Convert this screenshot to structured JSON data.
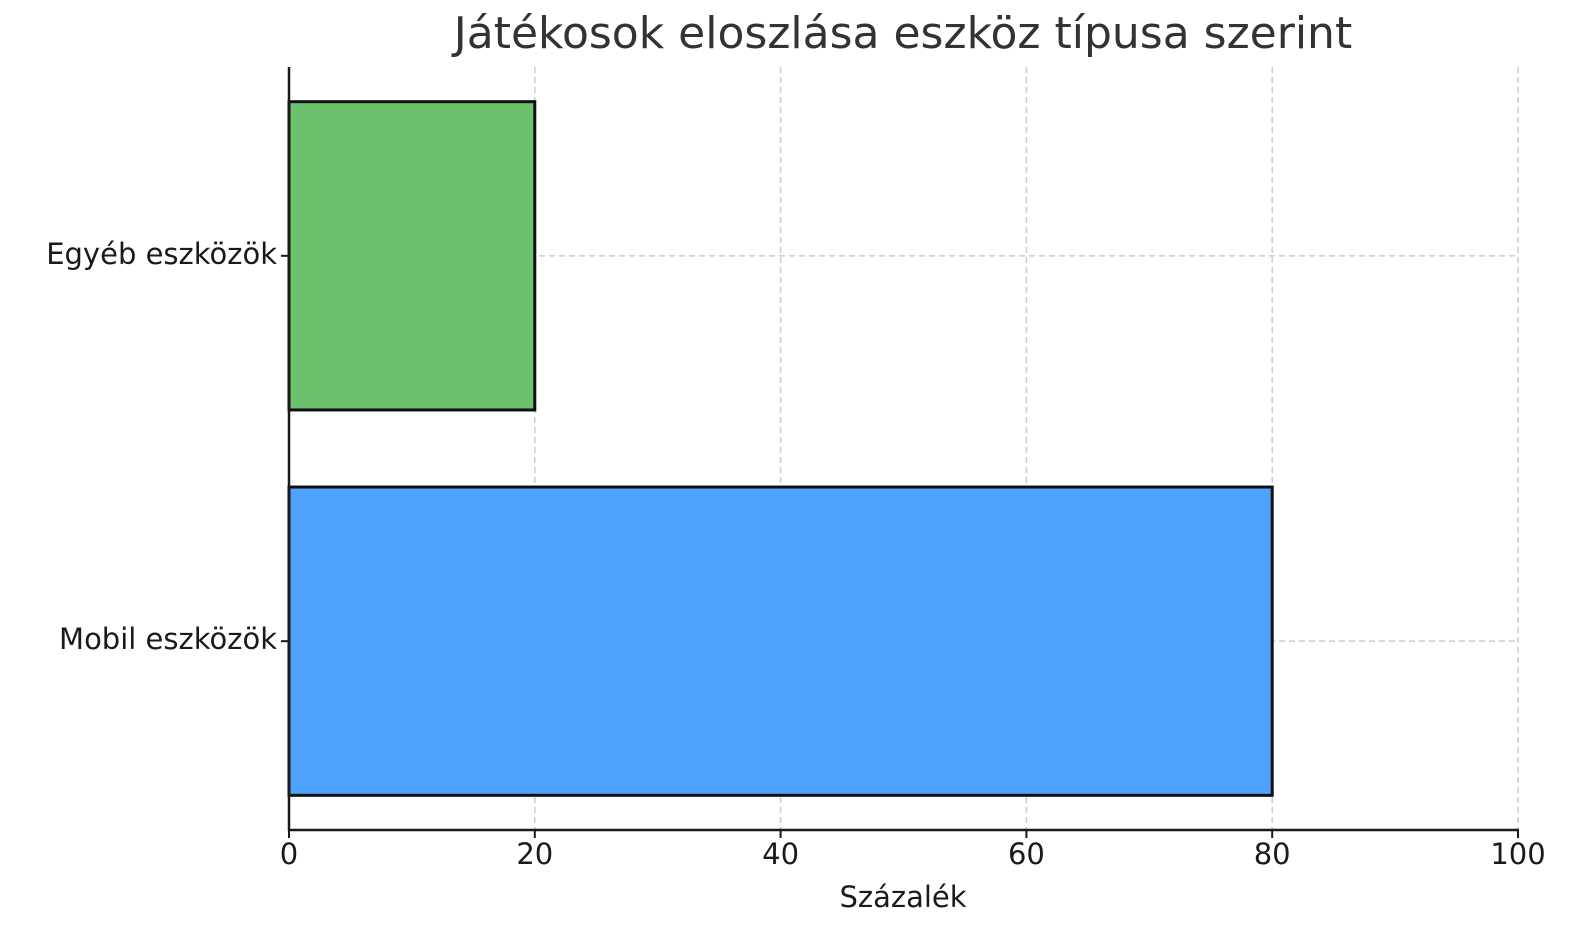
{
  "chart_data": {
    "type": "barh",
    "title": "Játékosok eloszlása eszköz típusa szerint",
    "categories": [
      "Mobil eszközök",
      "Egyéb eszközök"
    ],
    "values": [
      80,
      20
    ],
    "colors": [
      "#4fa3ff",
      "#6cc16c"
    ],
    "x_label": "Százalék",
    "xlim": [
      0,
      100
    ],
    "xticks": [
      0,
      20,
      40,
      60,
      80,
      100
    ],
    "grid": true
  }
}
